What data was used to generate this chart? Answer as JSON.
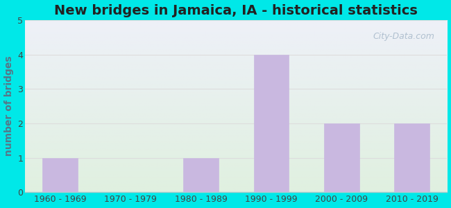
{
  "title": "New bridges in Jamaica, IA - historical statistics",
  "categories": [
    "1960 - 1969",
    "1970 - 1979",
    "1980 - 1989",
    "1990 - 1999",
    "2000 - 2009",
    "2010 - 2019"
  ],
  "values": [
    1,
    0,
    1,
    4,
    2,
    2
  ],
  "bar_color": "#c9b8e0",
  "bar_edgecolor": "#c9b8e0",
  "ylabel": "number of bridges",
  "ylim": [
    0,
    5
  ],
  "yticks": [
    0,
    1,
    2,
    3,
    4,
    5
  ],
  "background_outer": "#00e8e8",
  "background_plot_topleft": "#eef0f8",
  "background_plot_bottomright": "#e0f0e0",
  "title_fontsize": 14,
  "title_color": "#222222",
  "axis_label_fontsize": 10,
  "axis_label_color": "#557788",
  "tick_fontsize": 9,
  "tick_color": "#444444",
  "watermark_text": "City-Data.com",
  "watermark_color": "#aabbcc",
  "grid_color": "#dddddd",
  "spine_color": "#aacccc"
}
